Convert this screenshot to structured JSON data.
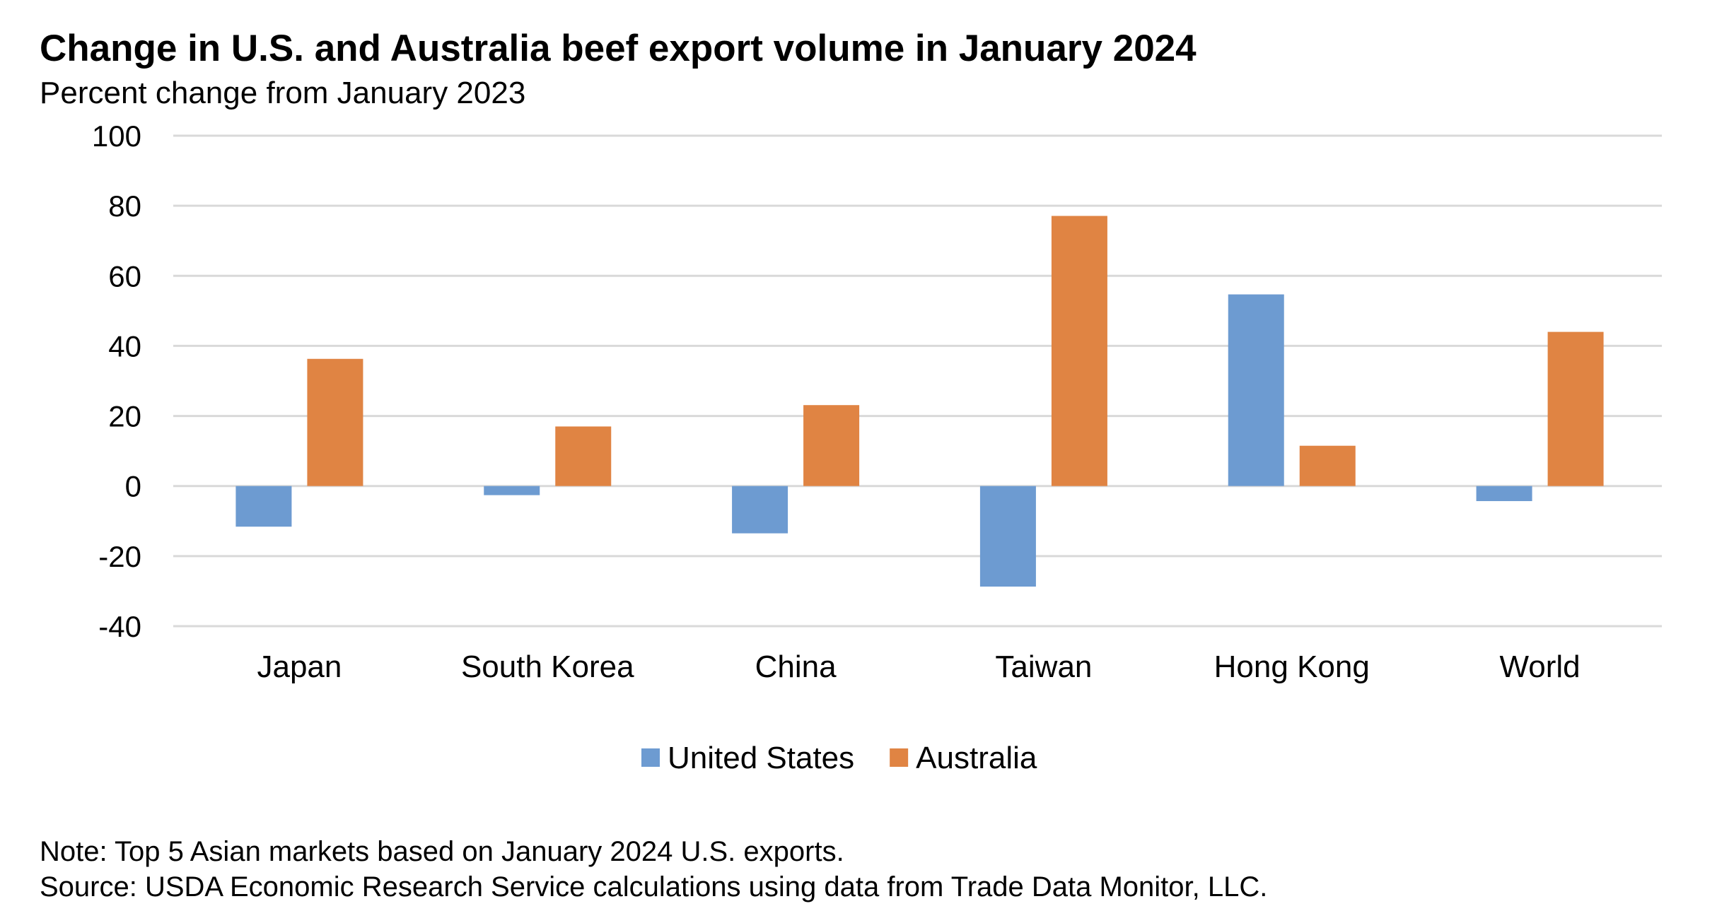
{
  "chart_data": {
    "type": "bar",
    "title": "Change in U.S. and Australia beef export volume in January 2024",
    "subtitle": "Percent change from January 2023",
    "xlabel": "",
    "ylabel": "",
    "ylim": [
      -40,
      100
    ],
    "yticks": [
      100,
      80,
      60,
      40,
      20,
      0,
      -20,
      -40
    ],
    "ytick_labels": [
      "100",
      "80",
      "60",
      "40",
      "20",
      "0",
      "-20",
      "-40"
    ],
    "grid": true,
    "legend_placement": "bottom-center",
    "categories": [
      "Japan",
      "South Korea",
      "China",
      "Taiwan",
      "Hong Kong",
      "World"
    ],
    "series": [
      {
        "name": "United States",
        "color": "#6d9bd1",
        "values": [
          -11.6,
          -2.6,
          -13.5,
          -28.7,
          54.7,
          -4.3
        ]
      },
      {
        "name": "Australia",
        "color": "#e08443",
        "values": [
          36.3,
          17.0,
          23.1,
          77.1,
          11.5,
          44.0
        ]
      }
    ]
  },
  "notes": {
    "note": "Note: Top 5 Asian markets based on January 2024 U.S. exports.",
    "source": "Source: USDA Economic Research Service calculations using data from Trade Data Monitor, LLC."
  }
}
